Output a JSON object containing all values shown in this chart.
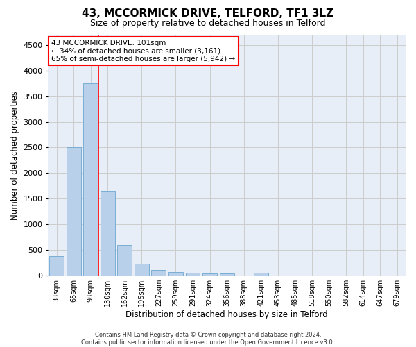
{
  "title": "43, MCCORMICK DRIVE, TELFORD, TF1 3LZ",
  "subtitle": "Size of property relative to detached houses in Telford",
  "xlabel": "Distribution of detached houses by size in Telford",
  "ylabel": "Number of detached properties",
  "categories": [
    "33sqm",
    "65sqm",
    "98sqm",
    "130sqm",
    "162sqm",
    "195sqm",
    "227sqm",
    "259sqm",
    "291sqm",
    "324sqm",
    "356sqm",
    "388sqm",
    "421sqm",
    "453sqm",
    "485sqm",
    "518sqm",
    "550sqm",
    "582sqm",
    "614sqm",
    "647sqm",
    "679sqm"
  ],
  "values": [
    380,
    2500,
    3750,
    1650,
    600,
    230,
    110,
    70,
    50,
    40,
    35,
    0,
    55,
    0,
    0,
    0,
    0,
    0,
    0,
    0,
    0
  ],
  "bar_color": "#b8d0ea",
  "bar_edge_color": "#7aaed4",
  "grid_color": "#cccccc",
  "background_color": "#e8eef8",
  "annotation_text": "43 MCCORMICK DRIVE: 101sqm\n← 34% of detached houses are smaller (3,161)\n65% of semi-detached houses are larger (5,942) →",
  "annotation_box_color": "red",
  "ylim": [
    0,
    4700
  ],
  "yticks": [
    0,
    500,
    1000,
    1500,
    2000,
    2500,
    3000,
    3500,
    4000,
    4500
  ],
  "footer_line1": "Contains HM Land Registry data © Crown copyright and database right 2024.",
  "footer_line2": "Contains public sector information licensed under the Open Government Licence v3.0.",
  "title_fontsize": 11,
  "subtitle_fontsize": 9,
  "red_line_bar_index": 2.45
}
